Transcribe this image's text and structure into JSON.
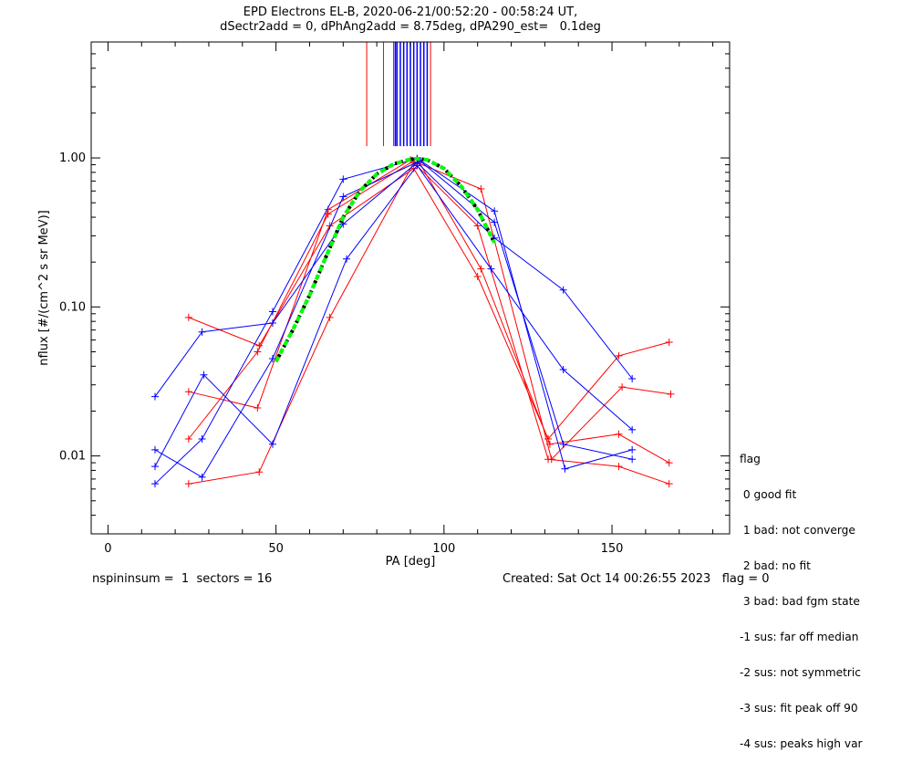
{
  "title": "EPD Electrons EL-B, 2020-06-21/00:52:20 - 00:58:24 UT,",
  "subtitle": "dSectr2add = 0, dPhAng2add = 8.75deg, dPA290_est=   0.1deg",
  "legend": {
    "title": "flag",
    "items": [
      " 0 good fit",
      " 1 bad: not converge",
      " 2 bad: no fit",
      " 3 bad: bad fgm state",
      "-1 sus: far off median",
      "-2 sus: not symmetric",
      "-3 sus: fit peak off 90",
      "-4 sus: peaks high var"
    ]
  },
  "footer": {
    "left": "nspininsum =  1  sectors = 16",
    "right": "Created: Sat Oct 14 00:26:55 2023   flag = 0"
  },
  "colors": {
    "red_series": "#ff0000",
    "blue_series": "#0000ff",
    "fit_green": "#00ff00",
    "fit_black": "#000000"
  },
  "chart_data": {
    "type": "line",
    "xlabel": "PA [deg]",
    "ylabel": "nflux [#/(cm^2 s sr MeV)]",
    "xlim": [
      -5,
      185
    ],
    "ylim": [
      0.003,
      6
    ],
    "yscale": "log",
    "xticks": [
      0,
      50,
      100,
      150
    ],
    "xticklabels": [
      "0",
      "50",
      "100",
      "150"
    ],
    "yticks": [
      0.01,
      0.1,
      1.0
    ],
    "yticklabels": [
      "0.01",
      "0.10",
      "1.00"
    ],
    "grid": false,
    "series": [
      {
        "color": "red",
        "x": [
          24,
          44.5,
          65.5,
          92,
          111,
          131.5,
          152,
          167
        ],
        "y": [
          0.013,
          0.05,
          0.42,
          0.99,
          0.18,
          0.012,
          0.014,
          0.009
        ]
      },
      {
        "color": "red",
        "x": [
          24,
          45,
          66,
          91,
          110,
          131,
          152,
          167
        ],
        "y": [
          0.0065,
          0.0078,
          0.085,
          0.93,
          0.35,
          0.0095,
          0.0085,
          0.0065
        ]
      },
      {
        "color": "red",
        "x": [
          24,
          45,
          66,
          91,
          110,
          131,
          152,
          167
        ],
        "y": [
          0.085,
          0.055,
          0.35,
          0.85,
          0.16,
          0.013,
          0.047,
          0.058
        ]
      },
      {
        "color": "red",
        "x": [
          24,
          44.5,
          65.5,
          90,
          111,
          132,
          153,
          167.5
        ],
        "y": [
          0.027,
          0.021,
          0.45,
          0.97,
          0.62,
          0.0095,
          0.029,
          0.026
        ]
      },
      {
        "color": "blue",
        "x": [
          14,
          28,
          49,
          70,
          92,
          115,
          135.5,
          156
        ],
        "y": [
          0.0065,
          0.013,
          0.093,
          0.72,
          0.99,
          0.37,
          0.012,
          0.0095
        ]
      },
      {
        "color": "blue",
        "x": [
          14,
          28,
          49,
          70,
          93,
          115,
          136,
          156
        ],
        "y": [
          0.011,
          0.0072,
          0.045,
          0.55,
          0.96,
          0.44,
          0.0082,
          0.011
        ]
      },
      {
        "color": "blue",
        "x": [
          14,
          28,
          49,
          70,
          92,
          115,
          135.5,
          156
        ],
        "y": [
          0.025,
          0.068,
          0.078,
          0.36,
          0.93,
          0.29,
          0.13,
          0.033
        ]
      },
      {
        "color": "blue",
        "x": [
          14,
          28.5,
          49,
          71,
          92,
          114,
          135.5,
          156
        ],
        "y": [
          0.0085,
          0.035,
          0.012,
          0.21,
          0.89,
          0.18,
          0.038,
          0.015
        ]
      }
    ],
    "fit_curve": {
      "style": "green dashed over black dashed",
      "x": [
        50,
        55,
        60,
        65,
        70,
        75,
        80,
        85,
        90,
        92,
        95,
        100,
        105,
        110,
        115
      ],
      "y": [
        0.043,
        0.07,
        0.12,
        0.22,
        0.4,
        0.6,
        0.78,
        0.91,
        0.98,
        0.99,
        0.97,
        0.85,
        0.65,
        0.45,
        0.27
      ]
    },
    "vertical_markers": {
      "red_x": [
        77,
        82,
        85,
        88,
        92,
        96
      ],
      "blue_x": [
        85.5,
        86,
        87,
        88,
        89,
        90,
        91,
        92,
        93,
        94,
        95
      ],
      "from_y": 1.2
    }
  }
}
